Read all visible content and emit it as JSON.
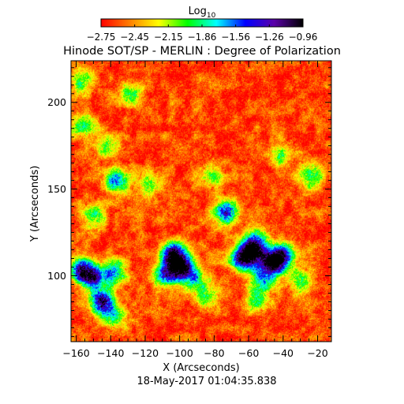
{
  "chart_data": {
    "type": "heatmap",
    "title": "Hinode SOT/SP - MERLIN : Degree of Polarization",
    "xlabel": "X (Arcseconds)",
    "ylabel": "Y (Arcseconds)",
    "xlim": [
      -163,
      -12
    ],
    "ylim": [
      62,
      224
    ],
    "xticks": [
      -160,
      -140,
      -120,
      -100,
      -80,
      -60,
      -40,
      -20
    ],
    "yticks": [
      100,
      150,
      200
    ],
    "xtick_labels": [
      "−160",
      "−140",
      "−120",
      "−100",
      "−80",
      "−60",
      "−40",
      "−20"
    ],
    "ytick_labels": [
      "100",
      "150",
      "200"
    ],
    "footer": "18-May-2017 01:04:35.838",
    "colorbar": {
      "title": "Log",
      "subscript": "10",
      "min": -2.75,
      "max": -0.96,
      "tick_labels": [
        "−2.75",
        "−2.45",
        "−2.15",
        "−1.86",
        "−1.56",
        "−1.26",
        "−0.96"
      ],
      "colormap": [
        "#ff0000",
        "#ff7f00",
        "#ffff00",
        "#00ff00",
        "#00ffff",
        "#0000ff",
        "#5a00a8",
        "#000000"
      ]
    },
    "background_level": -2.62,
    "patches": [
      {
        "x": -157,
        "y": 103,
        "level": -1.15
      },
      {
        "x": -150,
        "y": 99,
        "level": -1.55
      },
      {
        "x": -145,
        "y": 85,
        "level": -1.1
      },
      {
        "x": -138,
        "y": 102,
        "level": -1.6
      },
      {
        "x": -138,
        "y": 76,
        "level": -1.9
      },
      {
        "x": -104,
        "y": 113,
        "level": -1.1
      },
      {
        "x": -99,
        "y": 105,
        "level": -1.05
      },
      {
        "x": -108,
        "y": 101,
        "level": -1.6
      },
      {
        "x": -91,
        "y": 98,
        "level": -1.9
      },
      {
        "x": -73,
        "y": 137,
        "level": -1.35
      },
      {
        "x": -58,
        "y": 113,
        "level": -1.25
      },
      {
        "x": -46,
        "y": 108,
        "level": -1.05
      },
      {
        "x": -65,
        "y": 110,
        "level": -1.5
      },
      {
        "x": -52,
        "y": 99,
        "level": -1.7
      },
      {
        "x": -56,
        "y": 120,
        "level": -1.6
      },
      {
        "x": -40,
        "y": 112,
        "level": -1.5
      },
      {
        "x": -137,
        "y": 155,
        "level": -1.6
      },
      {
        "x": -150,
        "y": 135,
        "level": -1.9
      },
      {
        "x": -143,
        "y": 176,
        "level": -2.0
      },
      {
        "x": -157,
        "y": 186,
        "level": -1.9
      },
      {
        "x": -157,
        "y": 212,
        "level": -2.0
      },
      {
        "x": -128,
        "y": 205,
        "level": -2.0
      },
      {
        "x": -118,
        "y": 153,
        "level": -2.0
      },
      {
        "x": -82,
        "y": 158,
        "level": -2.0
      },
      {
        "x": -42,
        "y": 170,
        "level": -2.0
      },
      {
        "x": -25,
        "y": 158,
        "level": -1.8
      },
      {
        "x": -55,
        "y": 86,
        "level": -1.9
      },
      {
        "x": -30,
        "y": 97,
        "level": -1.9
      },
      {
        "x": -85,
        "y": 88,
        "level": -2.0
      }
    ]
  }
}
